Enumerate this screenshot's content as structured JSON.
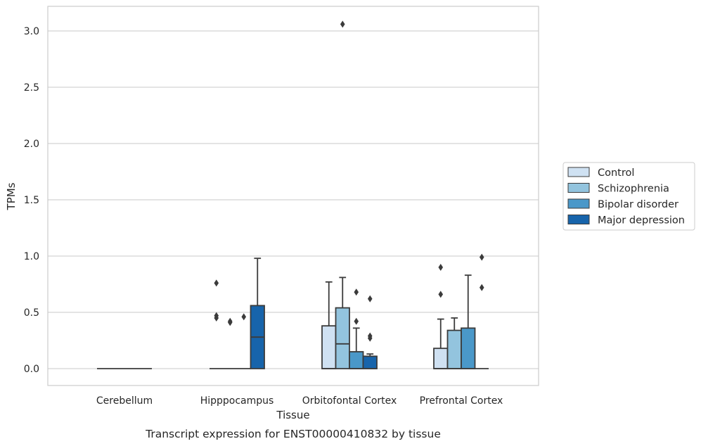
{
  "caption": "Transcript expression for ENST00000410832 by tissue",
  "chart_data": {
    "type": "box",
    "xlabel": "Tissue",
    "ylabel": "TPMs",
    "ylim": [
      -0.15,
      3.22
    ],
    "yticks": [
      0.0,
      0.5,
      1.0,
      1.5,
      2.0,
      2.5,
      3.0
    ],
    "ytick_labels": [
      "0.0",
      "0.5",
      "1.0",
      "1.5",
      "2.0",
      "2.5",
      "3.0"
    ],
    "grid": "horizontal",
    "legend_position": "right",
    "categories": [
      "Cerebellum",
      "Hipppocampus",
      "Orbitofontal Cortex",
      "Prefrontal Cortex"
    ],
    "series": [
      {
        "name": "Control",
        "color": "#cfe1f2",
        "boxes": [
          {
            "min": 0.0,
            "q1": 0.0,
            "median": 0.0,
            "q3": 0.0,
            "max": 0.0,
            "outliers": []
          },
          {
            "min": 0.0,
            "q1": 0.0,
            "median": 0.0,
            "q3": 0.0,
            "max": 0.0,
            "outliers": [
              0.76,
              0.47,
              0.45
            ]
          },
          {
            "min": 0.0,
            "q1": 0.0,
            "median": 0.0,
            "q3": 0.38,
            "max": 0.77,
            "outliers": []
          },
          {
            "min": 0.0,
            "q1": 0.0,
            "median": 0.0,
            "q3": 0.18,
            "max": 0.44,
            "outliers": [
              0.9,
              0.66
            ]
          }
        ]
      },
      {
        "name": "Schizophrenia",
        "color": "#93c4de",
        "boxes": [
          {
            "min": 0.0,
            "q1": 0.0,
            "median": 0.0,
            "q3": 0.0,
            "max": 0.0,
            "outliers": []
          },
          {
            "min": 0.0,
            "q1": 0.0,
            "median": 0.0,
            "q3": 0.0,
            "max": 0.0,
            "outliers": [
              0.42,
              0.41
            ]
          },
          {
            "min": 0.0,
            "q1": 0.0,
            "median": 0.22,
            "q3": 0.54,
            "max": 0.81,
            "outliers": [
              3.06
            ]
          },
          {
            "min": 0.0,
            "q1": 0.0,
            "median": 0.0,
            "q3": 0.34,
            "max": 0.45,
            "outliers": []
          }
        ]
      },
      {
        "name": "Bipolar disorder",
        "color": "#4a98c9",
        "boxes": [
          {
            "min": 0.0,
            "q1": 0.0,
            "median": 0.0,
            "q3": 0.0,
            "max": 0.0,
            "outliers": []
          },
          {
            "min": 0.0,
            "q1": 0.0,
            "median": 0.0,
            "q3": 0.0,
            "max": 0.0,
            "outliers": [
              0.46
            ]
          },
          {
            "min": 0.0,
            "q1": 0.0,
            "median": 0.0,
            "q3": 0.15,
            "max": 0.36,
            "outliers": [
              0.68,
              0.42
            ]
          },
          {
            "min": 0.0,
            "q1": 0.0,
            "median": 0.0,
            "q3": 0.36,
            "max": 0.83,
            "outliers": []
          }
        ]
      },
      {
        "name": "Major depression",
        "color": "#1764ab",
        "boxes": [
          {
            "min": 0.0,
            "q1": 0.0,
            "median": 0.0,
            "q3": 0.0,
            "max": 0.0,
            "outliers": []
          },
          {
            "min": 0.0,
            "q1": 0.0,
            "median": 0.28,
            "q3": 0.56,
            "max": 0.98,
            "outliers": []
          },
          {
            "min": 0.0,
            "q1": 0.0,
            "median": 0.0,
            "q3": 0.11,
            "max": 0.13,
            "outliers": [
              0.62,
              0.29,
              0.27
            ]
          },
          {
            "min": 0.0,
            "q1": 0.0,
            "median": 0.0,
            "q3": 0.0,
            "max": 0.0,
            "outliers": [
              0.99,
              0.72
            ]
          }
        ]
      }
    ]
  }
}
